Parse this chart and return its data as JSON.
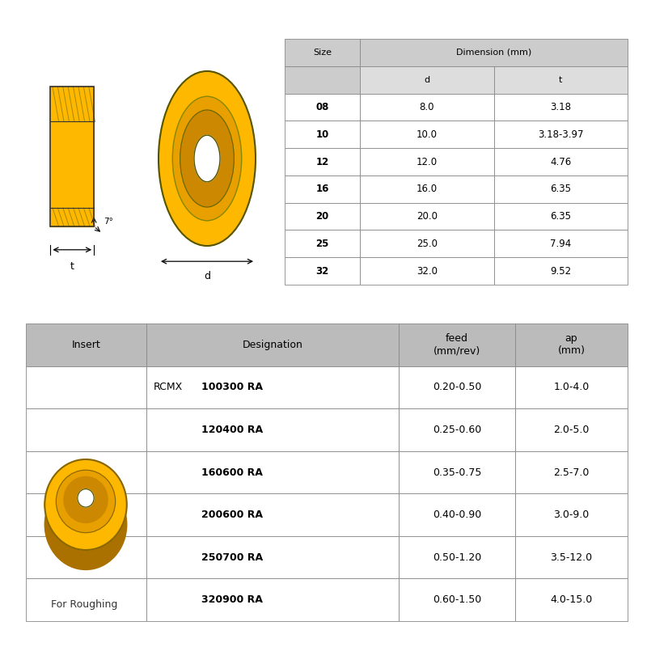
{
  "bg_color": "#ffffff",
  "table1_header_bg": "#cccccc",
  "table1_subheader_bg": "#dddddd",
  "table1_row_bg": "#ffffff",
  "table2_header_bg": "#bbbbbb",
  "table2_row_bg": "#ffffff",
  "insert_yellow": "#FFB800",
  "insert_dark_yellow": "#CC8800",
  "insert_mid_yellow": "#E8A000",
  "insert_shadow": "#AA7000",
  "dim_table_rows": [
    [
      "08",
      "8.0",
      "3.18"
    ],
    [
      "10",
      "10.0",
      "3.18-3.97"
    ],
    [
      "12",
      "12.0",
      "4.76"
    ],
    [
      "16",
      "16.0",
      "6.35"
    ],
    [
      "20",
      "20.0",
      "6.35"
    ],
    [
      "25",
      "25.0",
      "7.94"
    ],
    [
      "32",
      "32.0",
      "9.52"
    ]
  ],
  "insert_table_rcmx": "RCMX",
  "insert_table_rows": [
    [
      "100300 RA",
      "0.20-0.50",
      "1.0-4.0"
    ],
    [
      "120400 RA",
      "0.25-0.60",
      "2.0-5.0"
    ],
    [
      "160600 RA",
      "0.35-0.75",
      "2.5-7.0"
    ],
    [
      "200600 RA",
      "0.40-0.90",
      "3.0-9.0"
    ],
    [
      "250700 RA",
      "0.50-1.20",
      "3.5-12.0"
    ],
    [
      "320900 RA",
      "0.60-1.50",
      "4.0-15.0"
    ]
  ],
  "for_roughing_text": "For Roughing",
  "angle_label": "7°",
  "t_label": "t",
  "d_label": "d",
  "size_label": "Size",
  "dim_label": "Dimension (mm)",
  "d_col_label": "d",
  "t_col_label": "t",
  "insert_header": "Insert",
  "desig_header": "Designation",
  "feed_header": "feed\n(mm/rev)",
  "ap_header": "ap\n(mm)"
}
